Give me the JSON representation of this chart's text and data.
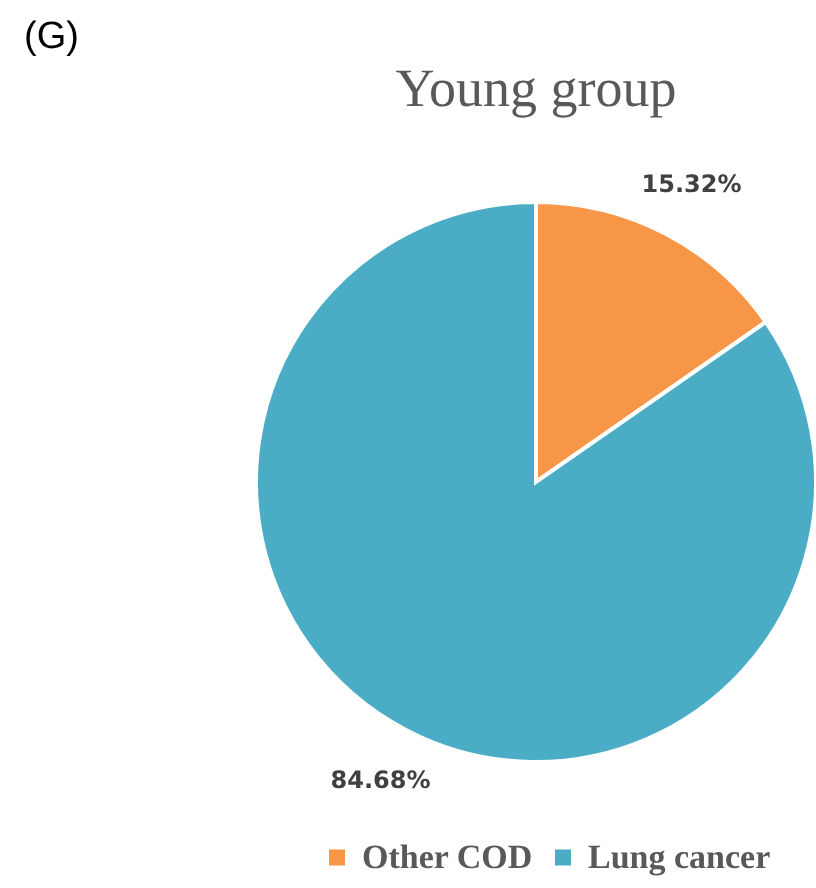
{
  "chart_data": {
    "type": "pie",
    "title": "Young group",
    "annotations": [
      "(G)"
    ],
    "categories": [
      "Other COD",
      "Lung cancer"
    ],
    "values": [
      15.32,
      84.68
    ],
    "colors": [
      "#f79646",
      "#4bacc6"
    ],
    "value_labels": [
      "15.32%",
      "84.68%"
    ],
    "legend": "bottom"
  }
}
